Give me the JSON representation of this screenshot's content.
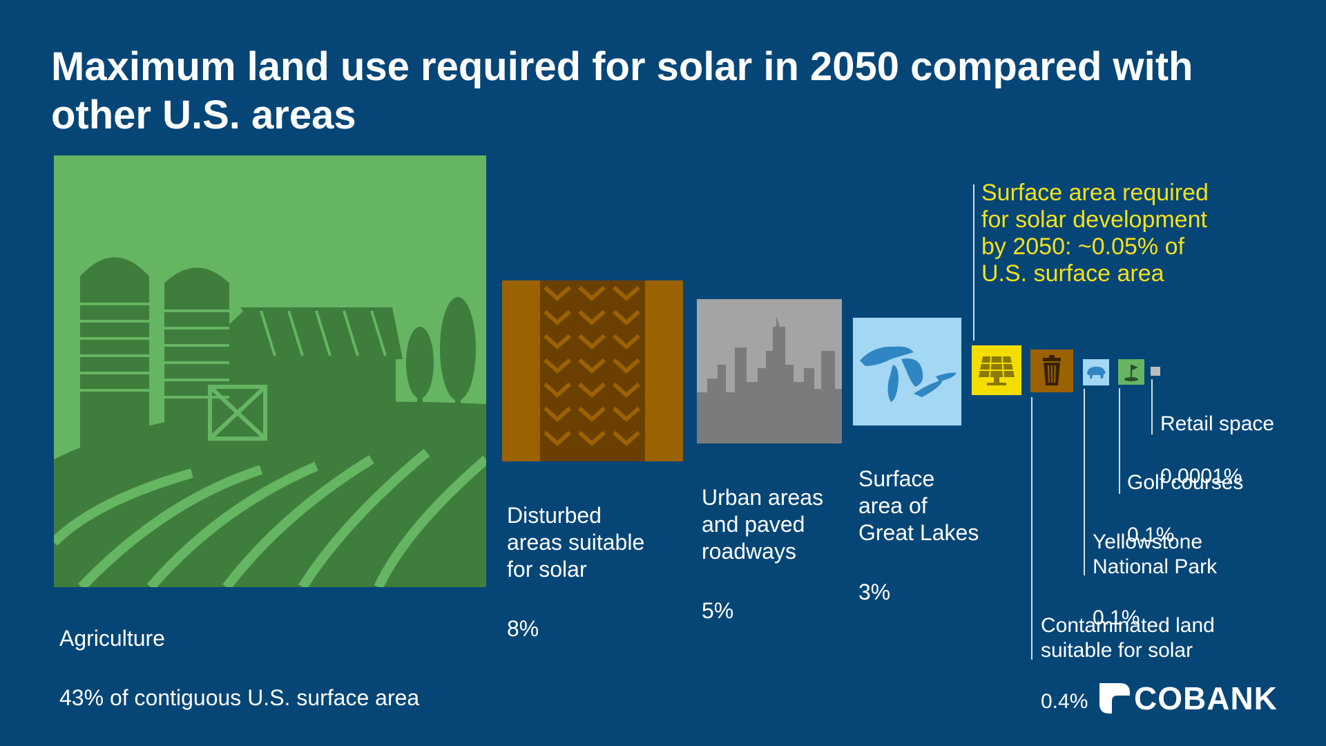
{
  "title": "Maximum land use required for solar in 2050 compared with other U.S. areas",
  "callout": "Surface area required\nfor solar development\nby 2050: ~0.05% of\nU.S. surface area",
  "colors": {
    "background": "#064677",
    "agriculture": "#66b562",
    "disturbed": "#9a6200",
    "urban": "#a4a4a4",
    "lakes": "#a3d7f4",
    "solar": "#f4de00",
    "contaminated": "#9a6200",
    "yellowstone": "#a3d7f4",
    "golf": "#66b562",
    "retail": "#bcbcbc",
    "callout": "#f5e11a"
  },
  "chart_data": {
    "type": "area",
    "title": "Maximum land use required for solar in 2050 compared with other U.S. areas",
    "categories": [
      "Agriculture",
      "Disturbed areas suitable for solar",
      "Urban areas and paved roadways",
      "Surface area of Great Lakes",
      "Surface area required for solar development by 2050",
      "Contaminated land suitable for solar",
      "Yellowstone National Park",
      "Golf courses",
      "Retail space"
    ],
    "values_percent": [
      43,
      8,
      5,
      3,
      0.05,
      0.4,
      0.1,
      0.1,
      0.0001
    ],
    "items": [
      {
        "key": "agriculture",
        "label": "Agriculture",
        "value_text": "43% of contiguous U.S. surface area",
        "icon": "farm-icon"
      },
      {
        "key": "disturbed",
        "label": "Disturbed\nareas suitable\nfor solar",
        "value_text": "8%",
        "icon": "tire-track-icon"
      },
      {
        "key": "urban",
        "label": "Urban areas\nand paved\nroadways",
        "value_text": "5%",
        "icon": "city-skyline-icon"
      },
      {
        "key": "lakes",
        "label": "Surface\narea of\nGreat Lakes",
        "value_text": "3%",
        "icon": "great-lakes-icon"
      },
      {
        "key": "solar",
        "label": "",
        "value_text": "",
        "icon": "solar-panel-icon"
      },
      {
        "key": "contaminated",
        "label": "Contaminated land\nsuitable for solar",
        "value_text": "0.4%",
        "icon": "trash-can-icon"
      },
      {
        "key": "yellowstone",
        "label": "Yellowstone\nNational Park",
        "value_text": "0.1%",
        "icon": "bison-icon"
      },
      {
        "key": "golf",
        "label": "Golf courses",
        "value_text": "0.1%",
        "icon": "golf-flag-icon"
      },
      {
        "key": "retail",
        "label": "Retail space",
        "value_text": "0.0001%",
        "icon": "retail-square-icon"
      }
    ]
  },
  "logo": {
    "text": "COBANK",
    "icon": "cobank-logo-icon"
  }
}
